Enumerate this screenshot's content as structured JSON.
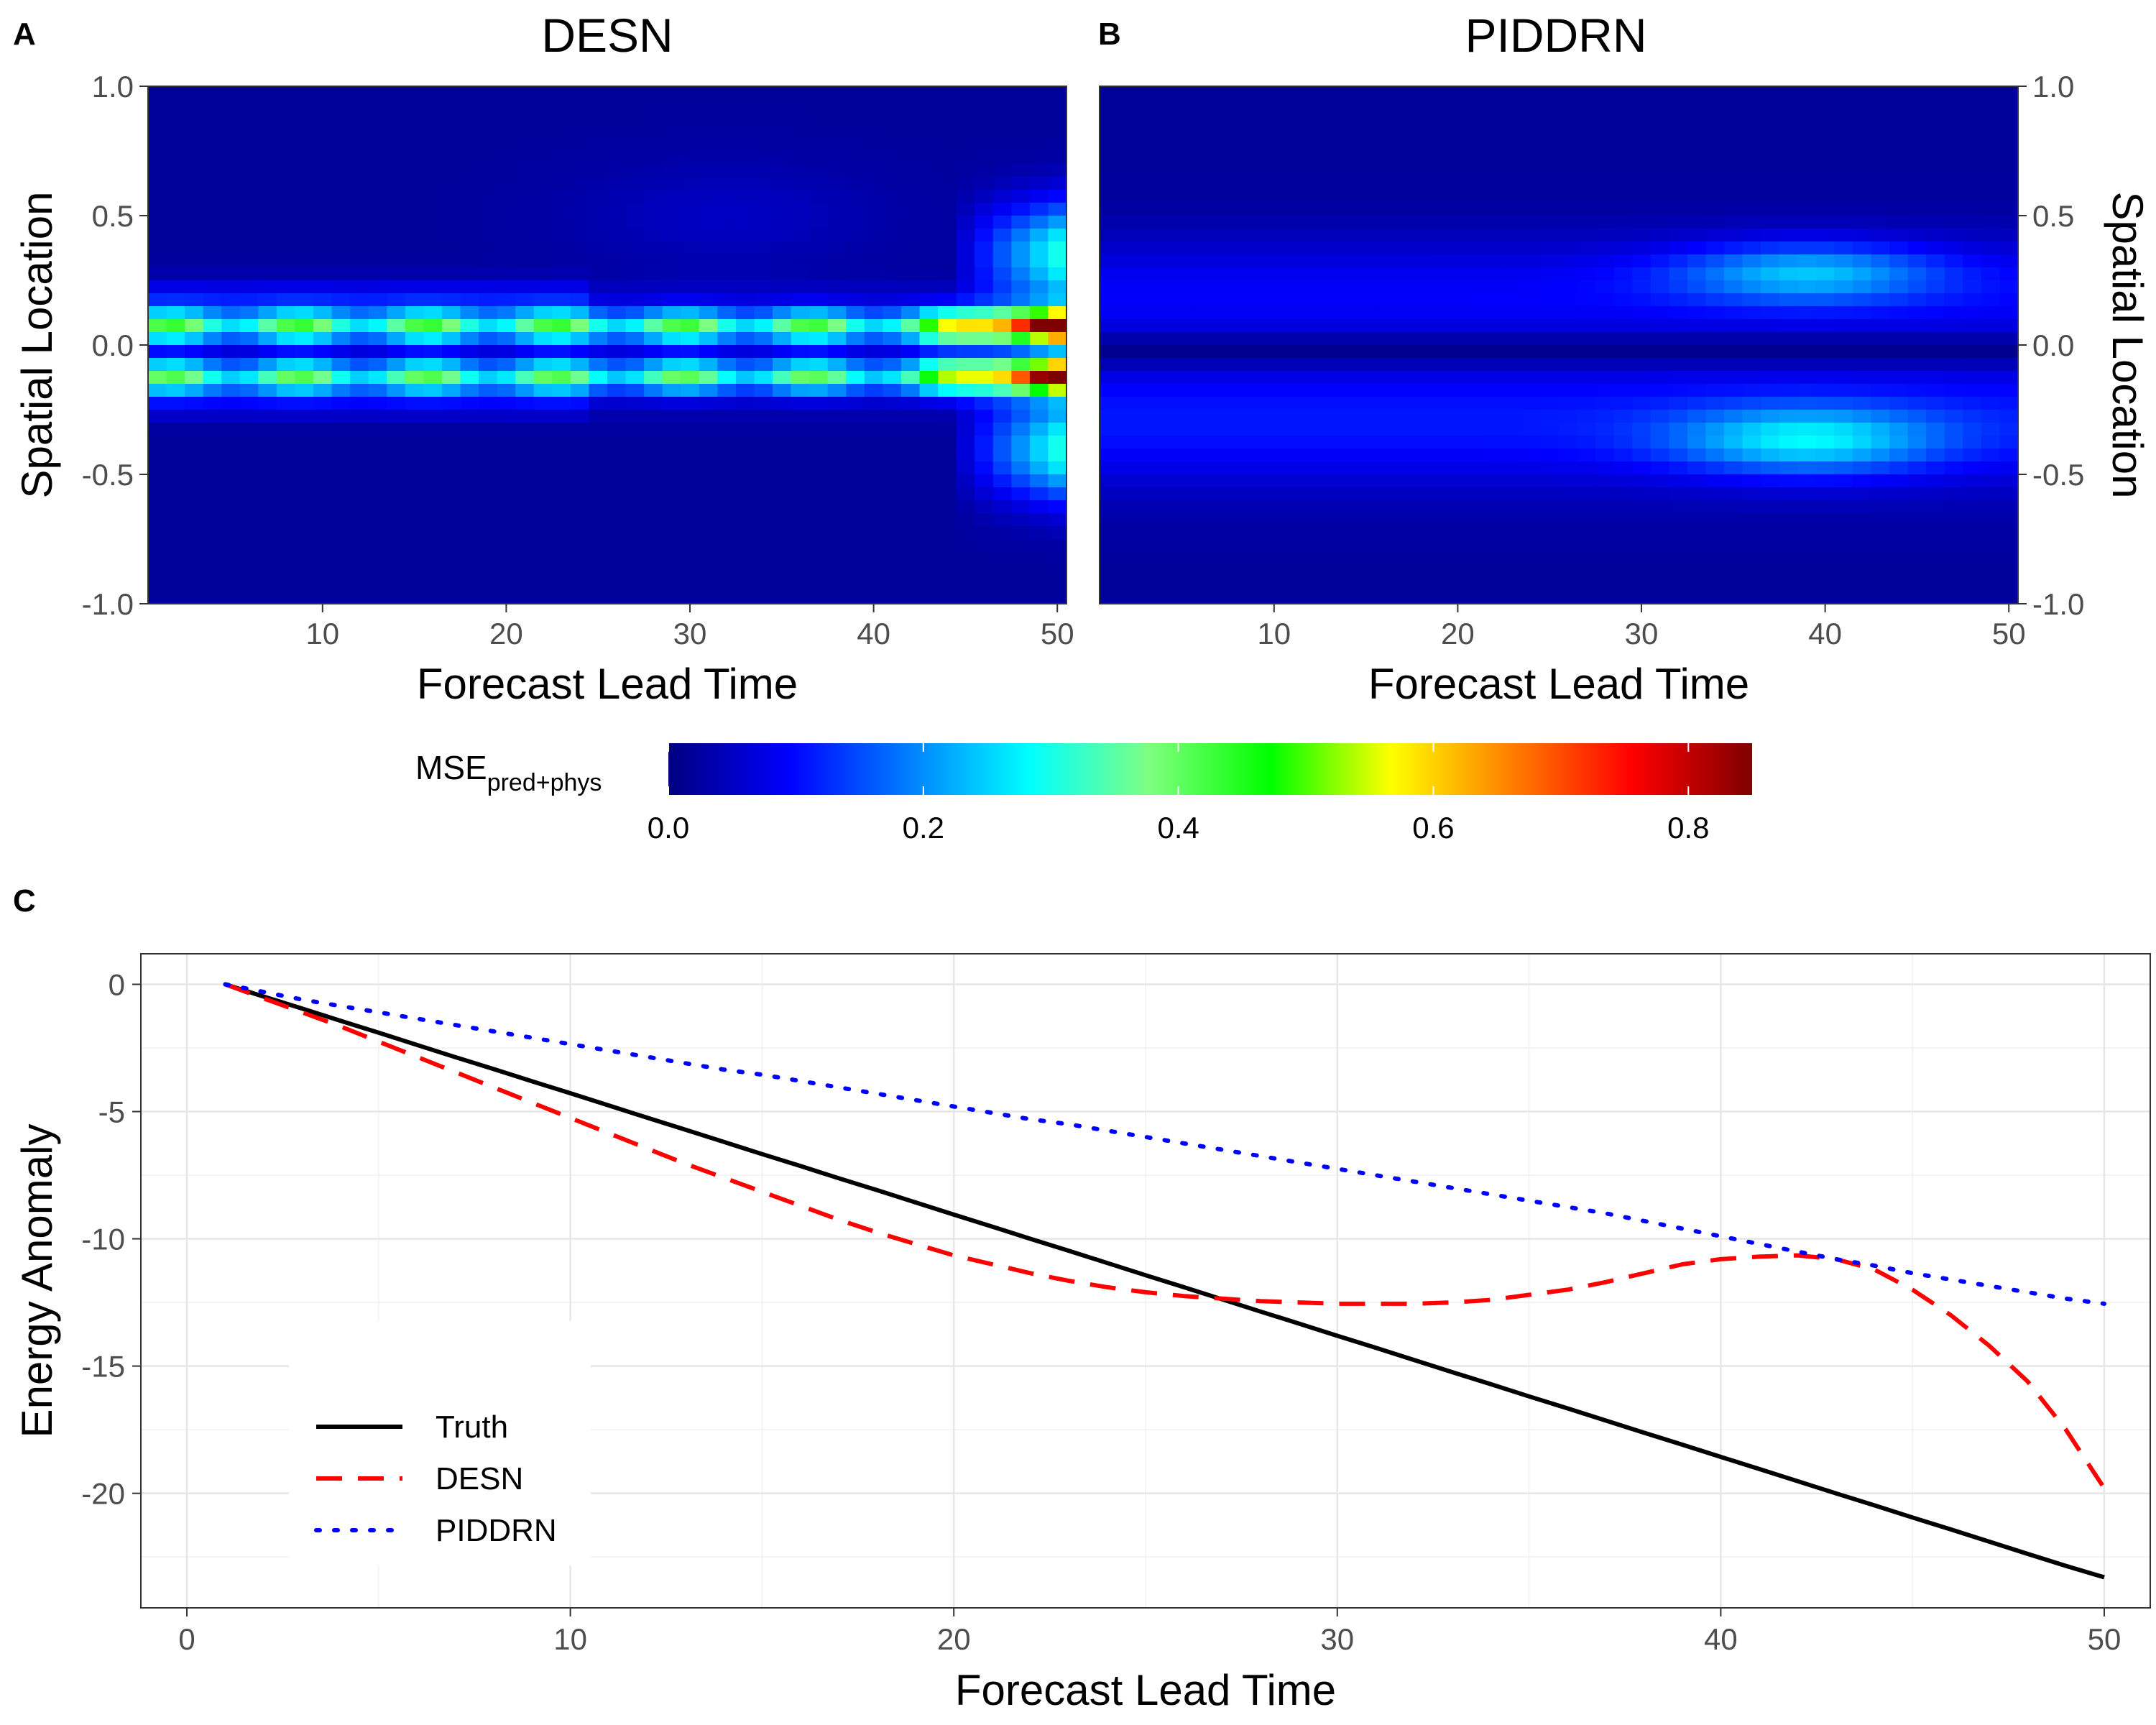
{
  "panel_labels": {
    "a": "A",
    "b": "B",
    "c": "C"
  },
  "colorbar": {
    "label_main": "MSE",
    "label_sub": "pred+phys",
    "ticks": [
      "0.0",
      "0.2",
      "0.4",
      "0.6",
      "0.8"
    ],
    "tick_values": [
      0.0,
      0.2,
      0.4,
      0.6,
      0.8
    ],
    "range": [
      0,
      0.85
    ],
    "colors": [
      "#00007F",
      "#0000FF",
      "#007FFF",
      "#00FFFF",
      "#7FFF7F",
      "#00FF00",
      "#FFFF00",
      "#FF7F00",
      "#FF0000",
      "#7F0000"
    ]
  },
  "chart_data": [
    {
      "type": "heatmap",
      "id": "desn-heatmap",
      "title": "DESN",
      "xlabel": "Forecast Lead Time",
      "ylabel": "Spatial Location",
      "xlim": [
        1,
        50
      ],
      "ylim": [
        -1,
        1
      ],
      "xticks": [
        "10",
        "20",
        "30",
        "40",
        "50"
      ],
      "xtick_values": [
        10,
        20,
        30,
        40,
        50
      ],
      "yticks": [
        "-1.0",
        "-0.5",
        "0.0",
        "0.5",
        "1.0"
      ],
      "ytick_values": [
        -1.0,
        -0.5,
        0.0,
        0.5,
        1.0
      ],
      "n_time": 50,
      "n_space": 40,
      "description_of_values": "high error bands near spatial location +0.05 and -0.12, growing sharply after lead time 45 to ~0.85"
    },
    {
      "type": "heatmap",
      "id": "piddrn-heatmap",
      "title": "PIDDRN",
      "xlabel": "Forecast Lead Time",
      "ylabel": "Spatial Location",
      "xlim": [
        1,
        50
      ],
      "ylim": [
        -1,
        1
      ],
      "xticks": [
        "10",
        "20",
        "30",
        "40",
        "50"
      ],
      "xtick_values": [
        10,
        20,
        30,
        40,
        50
      ],
      "yticks": [
        "-1.0",
        "-0.5",
        "0.0",
        "0.5",
        "1.0"
      ],
      "ytick_values": [
        -1.0,
        -0.5,
        0.0,
        0.5,
        1.0
      ],
      "n_time": 50,
      "n_space": 40,
      "description_of_values": "low error overall, moderate blobs (~0.2) around lead time 35-45 at spatial locations +0.3 and -0.4"
    },
    {
      "type": "line",
      "id": "energy-anomaly",
      "xlabel": "Forecast Lead Time",
      "ylabel": "Energy Anomaly",
      "xlim": [
        -1.2,
        51.2
      ],
      "ylim": [
        -24.5,
        1.2
      ],
      "xticks": [
        "0",
        "10",
        "20",
        "30",
        "40",
        "50"
      ],
      "xtick_values": [
        0,
        10,
        20,
        30,
        40,
        50
      ],
      "yticks": [
        "0",
        "-5",
        "-10",
        "-15",
        "-20"
      ],
      "ytick_values": [
        0,
        -5,
        -10,
        -15,
        -20
      ],
      "legend": [
        "Truth",
        "DESN",
        "PIDDRN"
      ],
      "legend_position": "bottom-left",
      "x": [
        1,
        2,
        3,
        4,
        5,
        6,
        7,
        8,
        9,
        10,
        11,
        12,
        13,
        14,
        15,
        16,
        17,
        18,
        19,
        20,
        21,
        22,
        23,
        24,
        25,
        26,
        27,
        28,
        29,
        30,
        31,
        32,
        33,
        34,
        35,
        36,
        37,
        38,
        39,
        40,
        41,
        42,
        43,
        44,
        45,
        46,
        47,
        48,
        49,
        50
      ],
      "series": [
        {
          "name": "Truth",
          "color": "#000000",
          "style": "solid",
          "values": [
            0.0,
            -0.48,
            -0.95,
            -1.43,
            -1.9,
            -2.38,
            -2.86,
            -3.33,
            -3.81,
            -4.28,
            -4.76,
            -5.24,
            -5.71,
            -6.19,
            -6.67,
            -7.14,
            -7.62,
            -8.09,
            -8.57,
            -9.05,
            -9.52,
            -10.0,
            -10.47,
            -10.95,
            -11.43,
            -11.9,
            -12.38,
            -12.86,
            -13.33,
            -13.81,
            -14.28,
            -14.76,
            -15.24,
            -15.71,
            -16.19,
            -16.66,
            -17.14,
            -17.62,
            -18.09,
            -18.57,
            -19.04,
            -19.52,
            -20.0,
            -20.47,
            -20.95,
            -21.42,
            -21.9,
            -22.38,
            -22.85,
            -23.3
          ]
        },
        {
          "name": "DESN",
          "color": "#FF0000",
          "style": "dashed",
          "values": [
            0.0,
            -0.55,
            -1.1,
            -1.65,
            -2.25,
            -2.85,
            -3.45,
            -4.05,
            -4.65,
            -5.25,
            -5.85,
            -6.45,
            -7.05,
            -7.6,
            -8.15,
            -8.7,
            -9.25,
            -9.75,
            -10.2,
            -10.65,
            -11.0,
            -11.35,
            -11.65,
            -11.9,
            -12.1,
            -12.25,
            -12.35,
            -12.45,
            -12.5,
            -12.55,
            -12.55,
            -12.55,
            -12.5,
            -12.4,
            -12.2,
            -12.0,
            -11.7,
            -11.35,
            -11.0,
            -10.8,
            -10.7,
            -10.65,
            -10.8,
            -11.2,
            -12.0,
            -13.0,
            -14.2,
            -15.6,
            -17.5,
            -19.8
          ]
        },
        {
          "name": "PIDDRN",
          "color": "#0000FF",
          "style": "dotted",
          "values": [
            0.0,
            -0.3,
            -0.6,
            -0.85,
            -1.1,
            -1.35,
            -1.6,
            -1.85,
            -2.1,
            -2.35,
            -2.6,
            -2.85,
            -3.1,
            -3.35,
            -3.55,
            -3.8,
            -4.05,
            -4.3,
            -4.55,
            -4.8,
            -5.05,
            -5.3,
            -5.5,
            -5.75,
            -6.0,
            -6.25,
            -6.5,
            -6.75,
            -7.0,
            -7.25,
            -7.5,
            -7.75,
            -8.0,
            -8.25,
            -8.5,
            -8.75,
            -9.0,
            -9.3,
            -9.6,
            -9.9,
            -10.2,
            -10.5,
            -10.8,
            -11.05,
            -11.35,
            -11.6,
            -11.85,
            -12.1,
            -12.35,
            -12.55
          ]
        }
      ]
    }
  ]
}
